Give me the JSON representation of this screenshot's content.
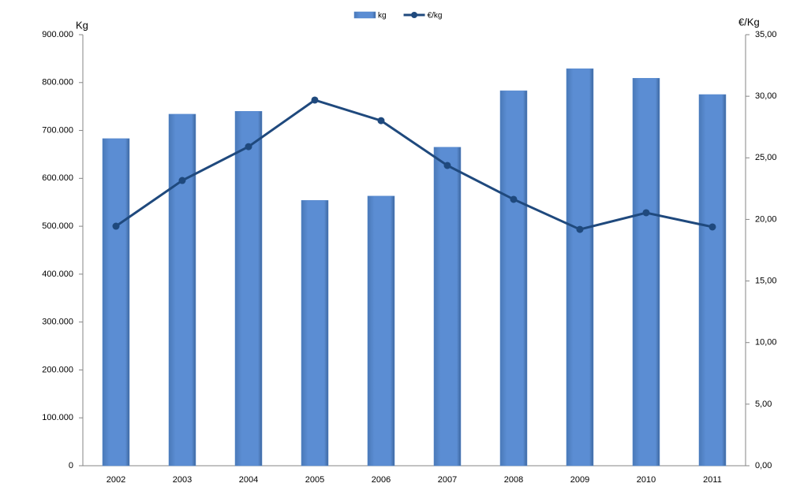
{
  "chart_data": {
    "type": "combo",
    "categories": [
      "2002",
      "2003",
      "2004",
      "2005",
      "2006",
      "2007",
      "2008",
      "2009",
      "2010",
      "2011"
    ],
    "series": [
      {
        "name": "kg",
        "type": "bar",
        "color": "#5588cc",
        "values": [
          683000,
          734000,
          740000,
          554000,
          563000,
          665000,
          783000,
          829000,
          809000,
          775000
        ]
      },
      {
        "name": "€/kg",
        "type": "line",
        "axis": "y2",
        "color": "#1f497d",
        "values": [
          19.45,
          23.16,
          25.91,
          29.69,
          28.02,
          24.38,
          21.63,
          19.19,
          20.54,
          19.39
        ]
      }
    ],
    "ylabel": "Kg",
    "y2label": "€/Kg",
    "ylim": [
      0,
      900000
    ],
    "yticks": [
      0,
      {
        "value": 100000,
        "label": "100.000"
      },
      {
        "value": 200000,
        "label": "200.000"
      },
      {
        "value": 300000,
        "label": "300.000"
      },
      {
        "value": 400000,
        "label": "400.000"
      },
      {
        "value": 500000,
        "label": "500.000"
      },
      {
        "value": 600000,
        "label": "600.000"
      },
      {
        "value": 700000,
        "label": "700.000"
      },
      {
        "value": 800000,
        "label": "800.000"
      },
      {
        "value": 900000,
        "label": "900.000"
      }
    ],
    "y2lim": [
      0,
      35
    ],
    "y2ticks": [
      {
        "value": 0,
        "label": "0,00"
      },
      {
        "value": 5,
        "label": "5,00"
      },
      {
        "value": 10,
        "label": "10,00"
      },
      {
        "value": 15,
        "label": "15,00"
      },
      {
        "value": 20,
        "label": "20,00"
      },
      {
        "value": 25,
        "label": "25,00"
      },
      {
        "value": 30,
        "label": "30,00"
      },
      {
        "value": 35,
        "label": "35,00"
      }
    ],
    "legend": "top"
  }
}
